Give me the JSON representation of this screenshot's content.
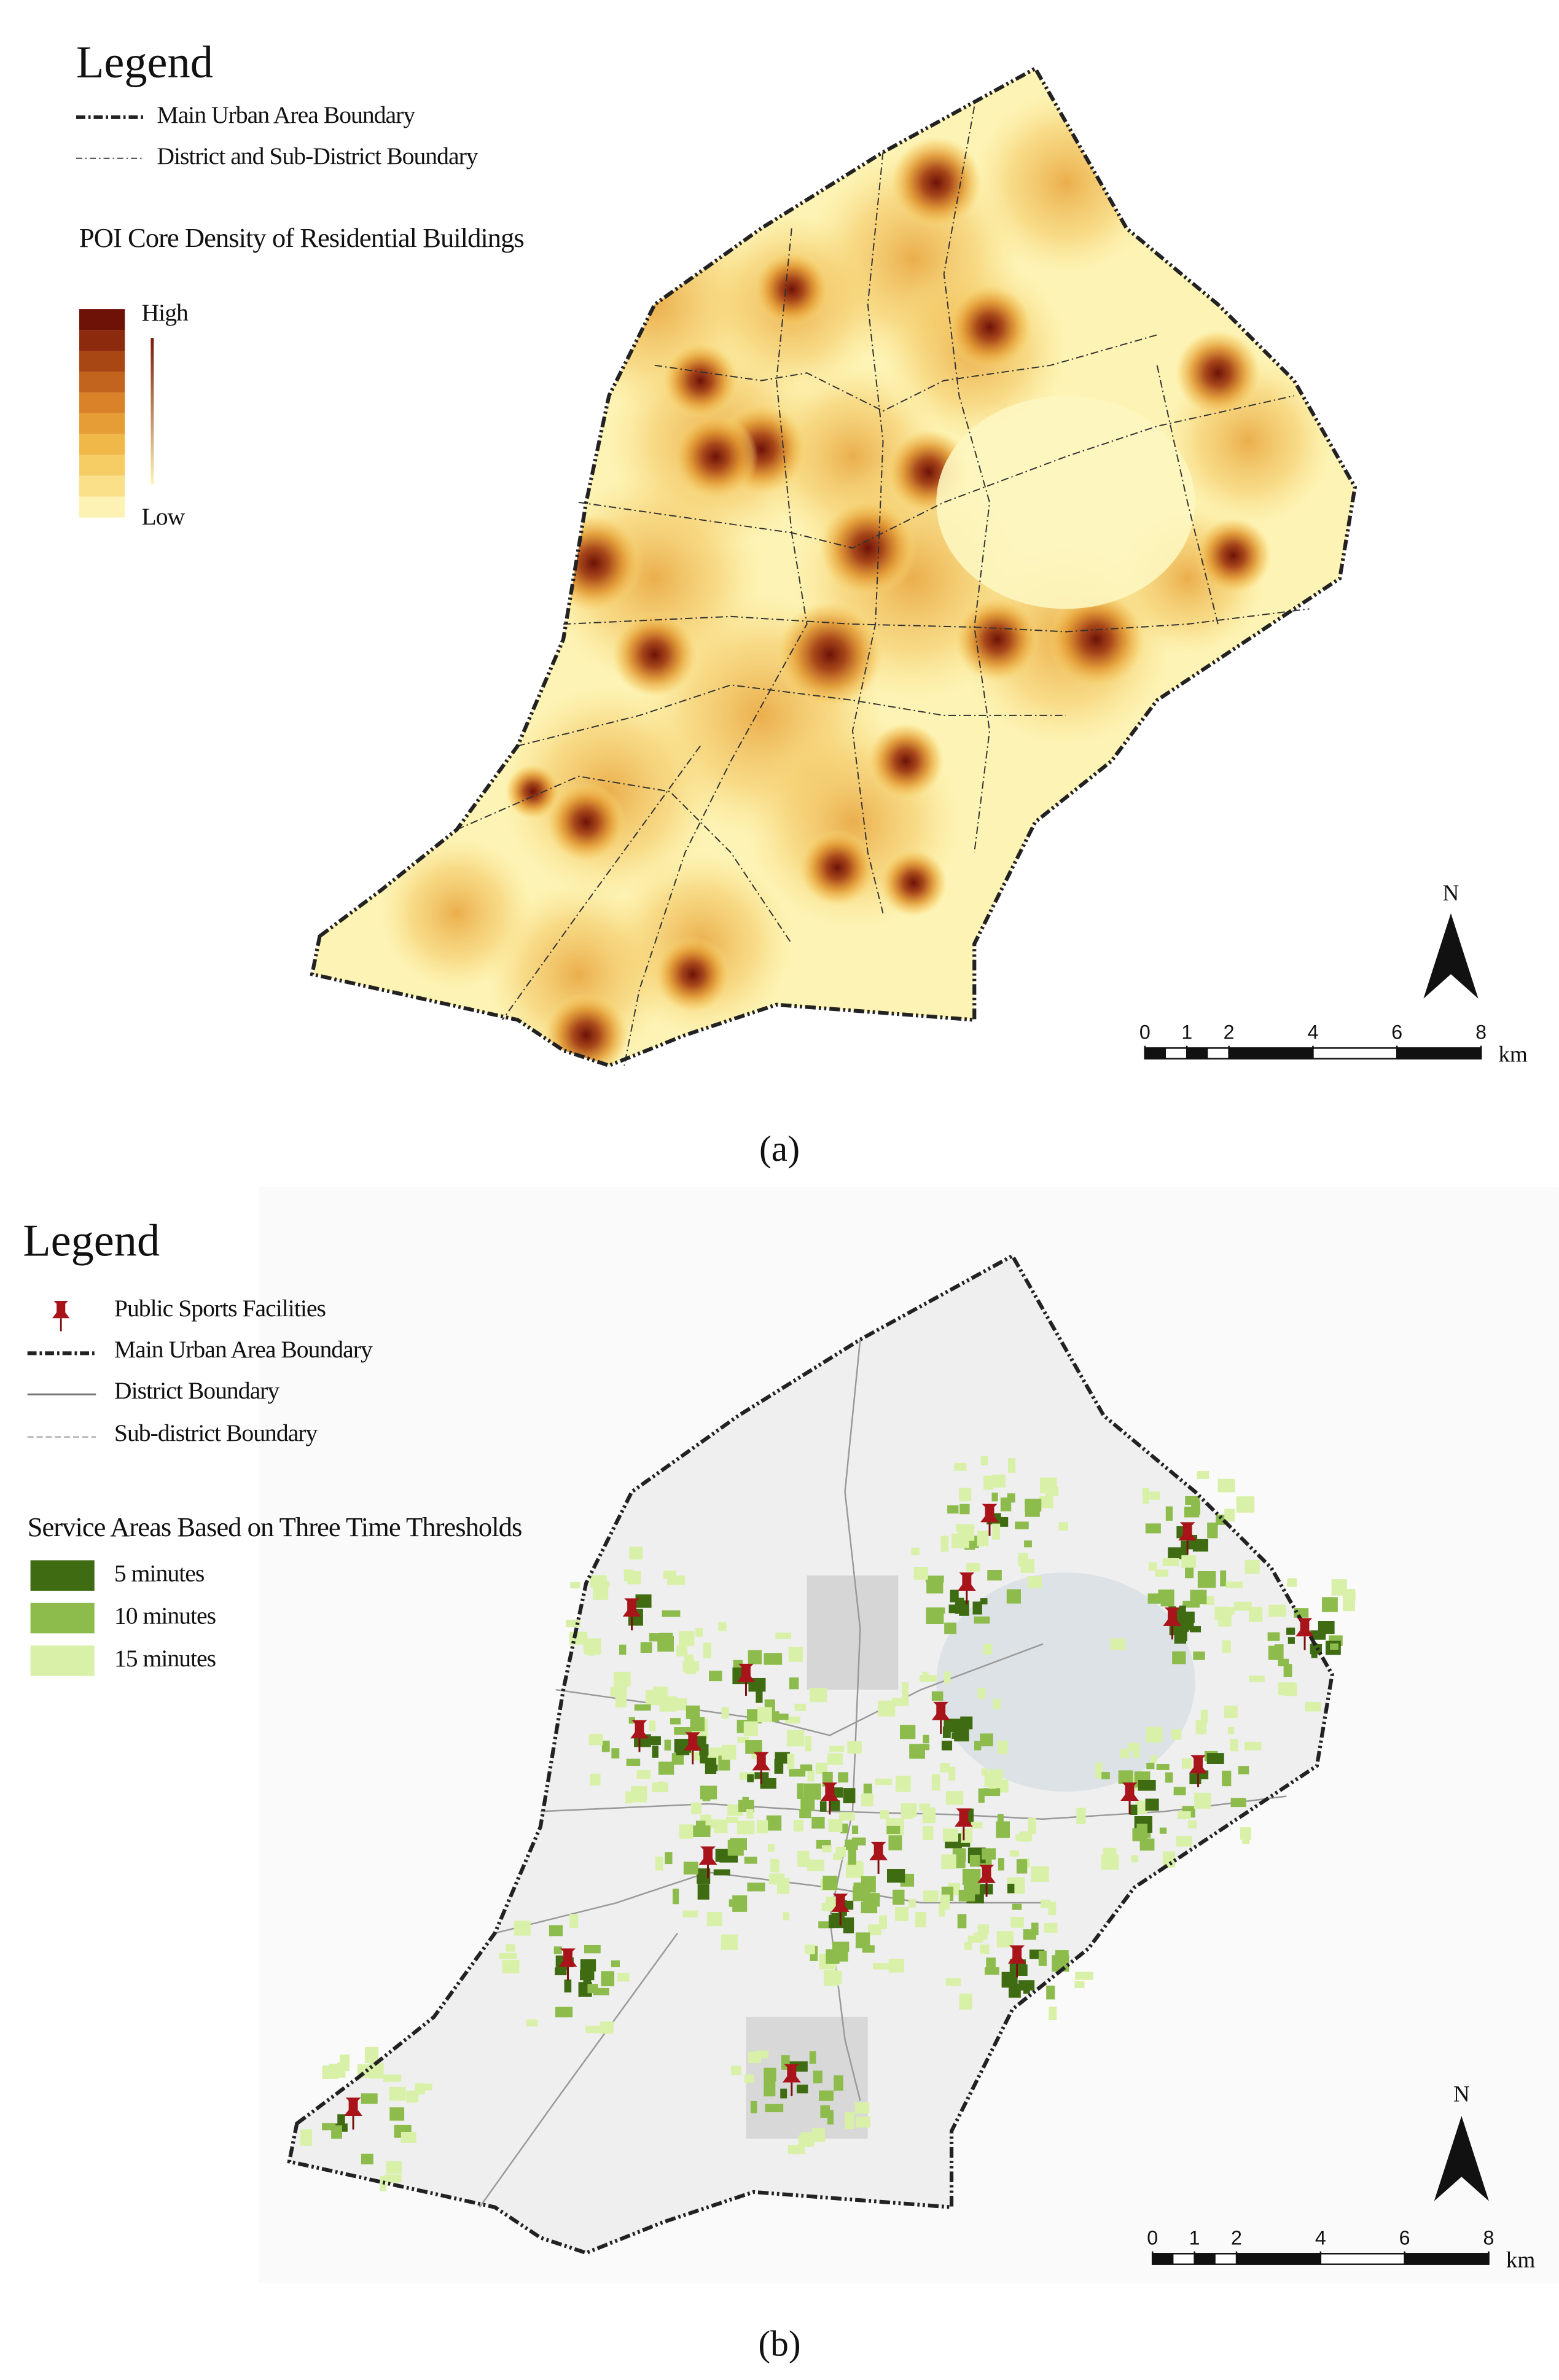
{
  "panel_a": {
    "legend": {
      "title": "Legend",
      "items": [
        "Main Urban Area Boundary",
        "District and Sub-District Boundary"
      ],
      "density_title": "POI Core Density of Residential Buildings",
      "high": "High",
      "low": "Low"
    },
    "north": "N",
    "scale": {
      "ticks": [
        0,
        1,
        2,
        4,
        6,
        8
      ],
      "unit": "km"
    },
    "caption": "(a)"
  },
  "panel_b": {
    "legend": {
      "title": "Legend",
      "items": [
        "Public Sports Facilities",
        "Main Urban Area Boundary",
        "District Boundary",
        "Sub-district Boundary"
      ],
      "service_title": "Service Areas Based on Three Time Thresholds",
      "thresholds": [
        "5 minutes",
        "10 minutes",
        "15 minutes"
      ]
    },
    "north": "N",
    "scale": {
      "ticks": [
        0,
        1,
        2,
        4,
        6,
        8
      ],
      "unit": "km"
    },
    "caption": "(b)"
  }
}
